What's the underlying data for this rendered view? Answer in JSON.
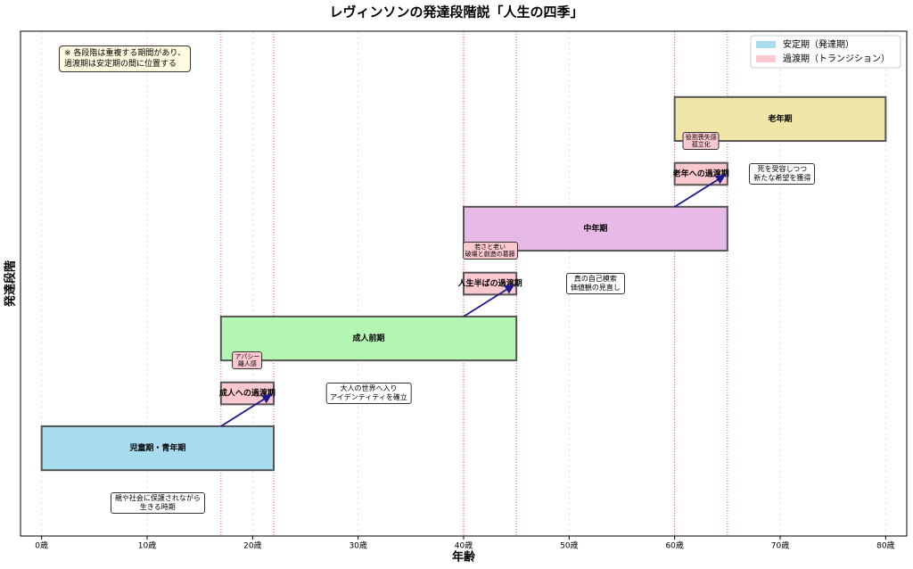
{
  "chart_data": {
    "type": "gantt",
    "title": "レヴィンソンの発達段階説「人生の四季」",
    "xlabel": "年齢",
    "ylabel": "発達段階",
    "xlim": [
      -2,
      82
    ],
    "ylim": [
      -1.6,
      7.6
    ],
    "xticks": [
      {
        "value": 0,
        "label": "0歳"
      },
      {
        "value": 10,
        "label": "10歳"
      },
      {
        "value": 20,
        "label": "20歳"
      },
      {
        "value": 30,
        "label": "30歳"
      },
      {
        "value": 40,
        "label": "40歳"
      },
      {
        "value": 50,
        "label": "50歳"
      },
      {
        "value": 60,
        "label": "60歳"
      },
      {
        "value": 70,
        "label": "70歳"
      },
      {
        "value": 80,
        "label": "80歳"
      }
    ],
    "grid": true,
    "legend_loc": "upper right",
    "boundaries": [
      17,
      22,
      40,
      45,
      60,
      65
    ],
    "note": "※ 各段階は重複する期間があり、\n過渡期は安定期の間に位置する",
    "series": [
      {
        "name": "安定期（発達期）",
        "color": "#a8dcef",
        "stages": [
          {
            "label": "児童期・青年期",
            "start": 0,
            "end": 22,
            "level": 0,
            "color": "#a8dcef",
            "note": "親や社会に保護されながら\n生きる時期"
          },
          {
            "label": "成人前期",
            "start": 17,
            "end": 45,
            "level": 2,
            "color": "#b3f7b3"
          },
          {
            "label": "中年期",
            "start": 40,
            "end": 65,
            "level": 4,
            "color": "#e6b9e6"
          },
          {
            "label": "老年期",
            "start": 60,
            "end": 80,
            "level": 6,
            "color": "#f0e6a8"
          }
        ]
      },
      {
        "name": "過渡期（トランジション）",
        "color": "#fbc8d0",
        "stages": [
          {
            "label": "成人への過渡期",
            "start": 17,
            "end": 22,
            "level": 1,
            "color": "#fbc8d0",
            "note": "大人の世界へ入り\nアイデンティティを確立",
            "crisis": "アパシー\n離人感"
          },
          {
            "label": "人生半ばの過渡期",
            "start": 40,
            "end": 45,
            "level": 3,
            "color": "#fbc8d0",
            "note": "真の自己模索\n価値観の見直し",
            "crisis": "若さと老い\n破壊と創造の葛藤"
          },
          {
            "label": "老年への過渡期",
            "start": 60,
            "end": 65,
            "level": 5,
            "color": "#fbc8d0",
            "note": "死を受容しつつ\n新たな希望を獲得",
            "crisis": "役割喪失感\n孤立化"
          }
        ]
      }
    ]
  }
}
